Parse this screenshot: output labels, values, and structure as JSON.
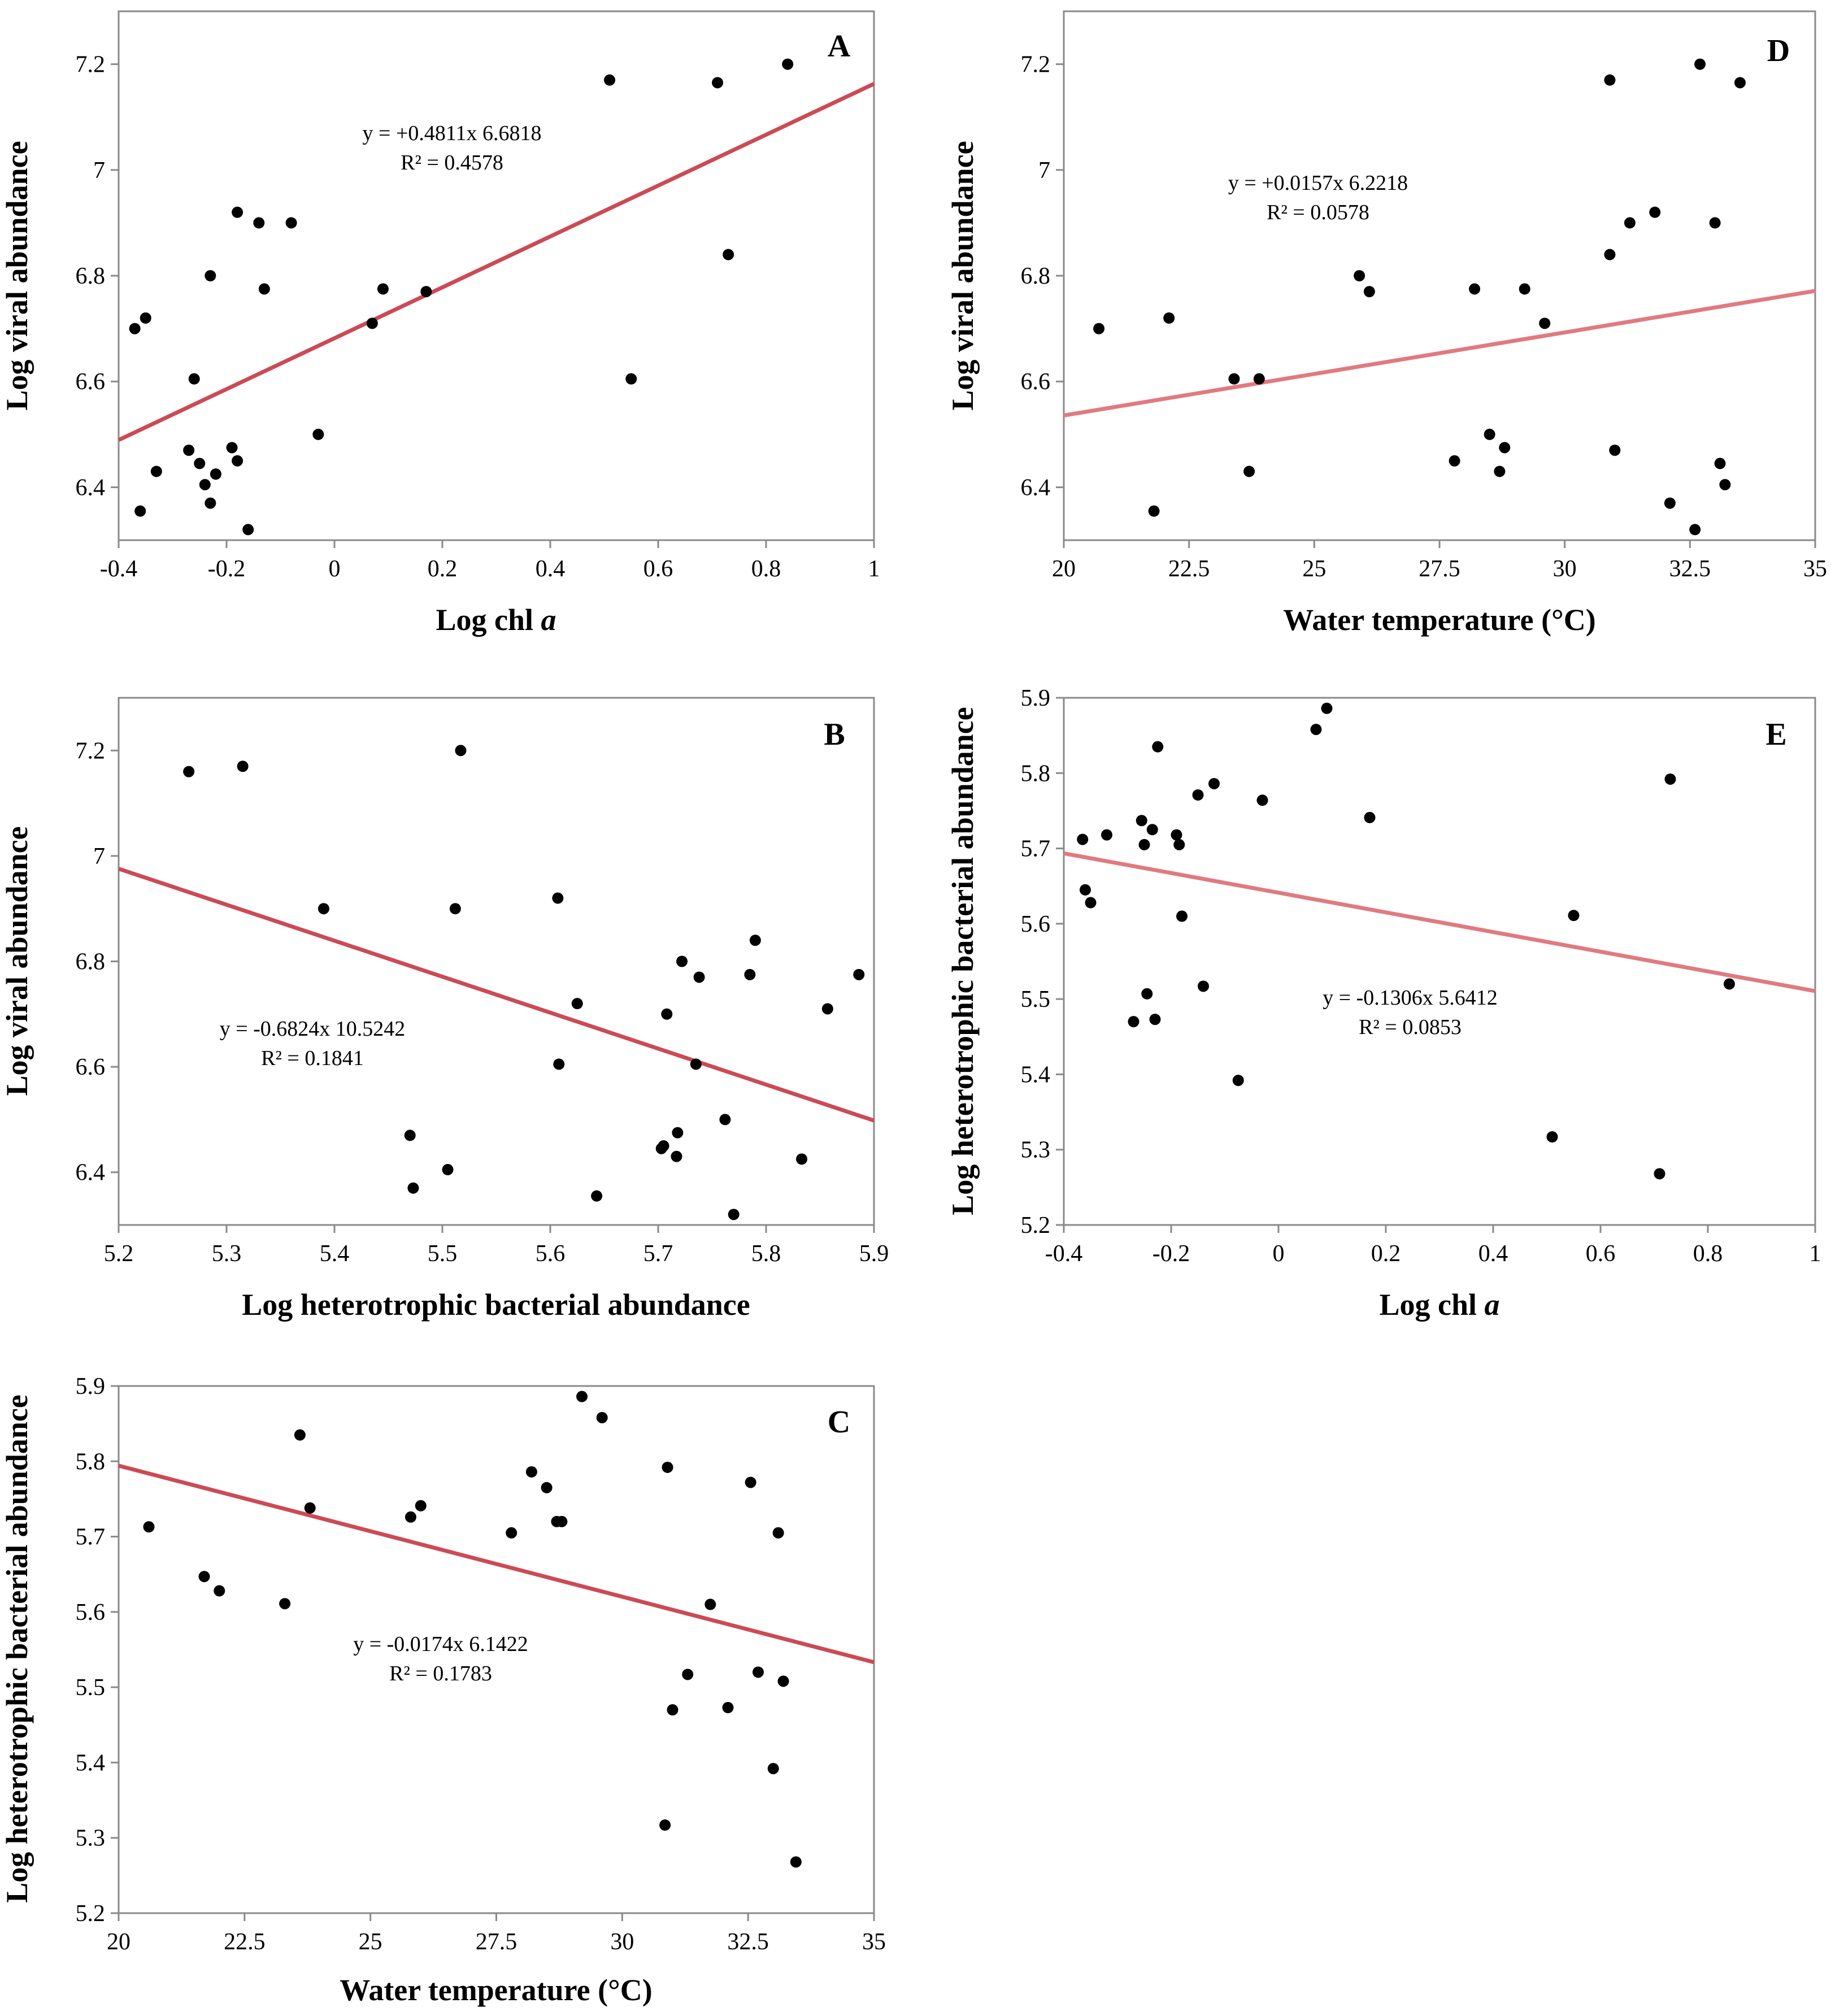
{
  "panels": [
    {
      "id": "A",
      "letter": "A",
      "xlabel": "Log chl ",
      "xlabel_italic": "a",
      "ylabel": "Log viral abundance",
      "xticks": [
        "-0.4",
        "-0.2",
        "0",
        "0.2",
        "0.4",
        "0.6",
        "0.8",
        "1"
      ],
      "yticks": [
        "6.4",
        "6.6",
        "6.8",
        "7",
        "7.2"
      ],
      "equation": "y = +0.4811x 6.6818",
      "r2": "R² = 0.4578",
      "line_color": "#cc4a55"
    },
    {
      "id": "D",
      "letter": "D",
      "xlabel": "Water temperature (°C)",
      "xlabel_italic": "",
      "ylabel": "Log viral abundance",
      "xticks": [
        "20",
        "22.5",
        "25",
        "27.5",
        "30",
        "32.5",
        "35"
      ],
      "yticks": [
        "6.4",
        "6.6",
        "6.8",
        "7",
        "7.2"
      ],
      "equation": "y = +0.0157x 6.2218",
      "r2": "R² = 0.0578",
      "line_color": "#e07a80"
    },
    {
      "id": "B",
      "letter": "B",
      "xlabel": "Log heterotrophic bacterial abundance",
      "xlabel_italic": "",
      "ylabel": "Log viral abundance",
      "xticks": [
        "5.2",
        "5.3",
        "5.4",
        "5.5",
        "5.6",
        "5.7",
        "5.8",
        "5.9"
      ],
      "yticks": [
        "6.4",
        "6.6",
        "6.8",
        "7",
        "7.2"
      ],
      "equation": "y = -0.6824x 10.5242",
      "r2": "R² = 0.1841",
      "line_color": "#cc4a55"
    },
    {
      "id": "E",
      "letter": "E",
      "xlabel": "Log chl ",
      "xlabel_italic": "a",
      "ylabel": "Log heterotrophic bacterial abundance",
      "xticks": [
        "-0.4",
        "-0.2",
        "0",
        "0.2",
        "0.4",
        "0.6",
        "0.8",
        "1"
      ],
      "yticks": [
        "5.2",
        "5.3",
        "5.4",
        "5.5",
        "5.6",
        "5.7",
        "5.8",
        "5.9"
      ],
      "equation": "y = -0.1306x 5.6412",
      "r2": "R² = 0.0853",
      "line_color": "#e07a80"
    },
    {
      "id": "C",
      "letter": "C",
      "xlabel": "Water temperature (°C)",
      "xlabel_italic": "",
      "ylabel": "Log heterotrophic bacterial abundance",
      "xticks": [
        "20",
        "22.5",
        "25",
        "27.5",
        "30",
        "32.5",
        "35"
      ],
      "yticks": [
        "5.2",
        "5.3",
        "5.4",
        "5.5",
        "5.6",
        "5.7",
        "5.8",
        "5.9"
      ],
      "equation": "y = -0.0174x 6.1422",
      "r2": "R² = 0.1783",
      "line_color": "#cc4a55"
    }
  ],
  "chart_data": [
    {
      "panel": "A",
      "type": "scatter",
      "title": "",
      "xlabel": "Log chl a",
      "ylabel": "Log viral abundance",
      "xlim": [
        -0.4,
        1.0
      ],
      "ylim": [
        6.3,
        7.3
      ],
      "x": [
        -0.37,
        -0.35,
        -0.36,
        -0.33,
        -0.27,
        -0.26,
        -0.25,
        -0.24,
        -0.23,
        -0.23,
        -0.22,
        -0.19,
        -0.18,
        -0.18,
        -0.16,
        -0.14,
        -0.13,
        -0.08,
        -0.03,
        0.07,
        0.09,
        0.17,
        0.51,
        0.55,
        0.71,
        0.73,
        0.84
      ],
      "y": [
        6.7,
        6.72,
        6.355,
        6.43,
        6.47,
        6.605,
        6.445,
        6.405,
        6.8,
        6.37,
        6.425,
        6.475,
        6.92,
        6.45,
        6.32,
        6.9,
        6.775,
        6.9,
        6.5,
        6.71,
        6.775,
        6.77,
        7.17,
        6.605,
        7.165,
        6.84,
        7.2
      ],
      "trendline": {
        "slope": 0.4811,
        "intercept": 6.6818
      },
      "equation": "y = +0.4811x 6.6818",
      "r2": 0.4578
    },
    {
      "panel": "D",
      "type": "scatter",
      "title": "",
      "xlabel": "Water temperature (°C)",
      "ylabel": "Log viral abundance",
      "xlim": [
        20,
        35
      ],
      "ylim": [
        6.3,
        7.3
      ],
      "x": [
        20.7,
        21.8,
        22.1,
        23.4,
        23.7,
        23.9,
        25.9,
        26.1,
        27.8,
        28.2,
        28.5,
        28.7,
        28.8,
        29.2,
        29.6,
        30.9,
        30.9,
        31.0,
        31.3,
        31.8,
        32.1,
        32.6,
        32.7,
        33.0,
        33.1,
        33.2,
        33.5
      ],
      "y": [
        6.7,
        6.355,
        6.72,
        6.605,
        6.43,
        6.605,
        6.8,
        6.77,
        6.45,
        6.775,
        6.5,
        6.43,
        6.475,
        6.775,
        6.71,
        6.84,
        7.17,
        6.47,
        6.9,
        6.92,
        6.37,
        6.32,
        7.2,
        6.9,
        6.445,
        6.405,
        7.165
      ],
      "trendline": {
        "slope": 0.0157,
        "intercept": 6.2218
      },
      "equation": "y = +0.0157x 6.2218",
      "r2": 0.0578
    },
    {
      "panel": "B",
      "type": "scatter",
      "title": "",
      "xlabel": "Log heterotrophic bacterial abundance",
      "ylabel": "Log viral abundance",
      "xlim": [
        5.2,
        5.9
      ],
      "ylim": [
        6.3,
        7.3
      ],
      "x": [
        5.265,
        5.315,
        5.39,
        5.47,
        5.473,
        5.505,
        5.512,
        5.517,
        5.607,
        5.608,
        5.625,
        5.643,
        5.703,
        5.705,
        5.708,
        5.717,
        5.718,
        5.722,
        5.735,
        5.738,
        5.762,
        5.77,
        5.785,
        5.79,
        5.833,
        5.857,
        5.886
      ],
      "y": [
        7.16,
        7.17,
        6.9,
        6.47,
        6.37,
        6.405,
        6.9,
        7.2,
        6.92,
        6.605,
        6.72,
        6.355,
        6.445,
        6.45,
        6.7,
        6.43,
        6.475,
        6.8,
        6.605,
        6.77,
        6.5,
        6.32,
        6.775,
        6.84,
        6.425,
        6.71,
        6.775
      ],
      "trendline": {
        "slope": -0.6824,
        "intercept": 10.5242
      },
      "equation": "y = -0.6824x 10.5242",
      "r2": 0.1841
    },
    {
      "panel": "E",
      "type": "scatter",
      "title": "",
      "xlabel": "Log chl a",
      "ylabel": "Log heterotrophic bacterial abundance",
      "xlim": [
        -0.4,
        1.0
      ],
      "ylim": [
        5.2,
        5.9
      ],
      "x": [
        -0.365,
        -0.36,
        -0.35,
        -0.32,
        -0.27,
        -0.255,
        -0.25,
        -0.245,
        -0.235,
        -0.23,
        -0.225,
        -0.19,
        -0.185,
        -0.18,
        -0.15,
        -0.14,
        -0.12,
        -0.075,
        -0.03,
        0.07,
        0.09,
        0.17,
        0.51,
        0.55,
        0.71,
        0.73,
        0.84
      ],
      "y": [
        5.712,
        5.645,
        5.628,
        5.718,
        5.47,
        5.737,
        5.705,
        5.507,
        5.725,
        5.473,
        5.835,
        5.718,
        5.705,
        5.61,
        5.771,
        5.517,
        5.786,
        5.392,
        5.764,
        5.858,
        5.886,
        5.741,
        5.317,
        5.611,
        5.268,
        5.792,
        5.52
      ],
      "trendline": {
        "slope": -0.1306,
        "intercept": 5.6412
      },
      "equation": "y = -0.1306x 5.6412",
      "r2": 0.0853
    },
    {
      "panel": "C",
      "type": "scatter",
      "title": "",
      "xlabel": "Water temperature (°C)",
      "ylabel": "Log heterotrophic bacterial abundance",
      "xlim": [
        20,
        35
      ],
      "ylim": [
        5.2,
        5.9
      ],
      "x": [
        20.6,
        21.7,
        22.0,
        23.3,
        23.6,
        23.8,
        25.8,
        26.0,
        27.8,
        28.2,
        28.5,
        28.7,
        28.8,
        29.2,
        29.6,
        30.85,
        30.9,
        31.0,
        31.3,
        31.75,
        32.1,
        32.55,
        32.7,
        33.0,
        33.1,
        33.2,
        33.45
      ],
      "y": [
        5.713,
        5.647,
        5.628,
        5.611,
        5.835,
        5.738,
        5.726,
        5.741,
        5.705,
        5.786,
        5.765,
        5.72,
        5.72,
        5.886,
        5.858,
        5.317,
        5.792,
        5.47,
        5.517,
        5.61,
        5.473,
        5.772,
        5.52,
        5.392,
        5.705,
        5.508,
        5.268
      ],
      "trendline": {
        "slope": -0.0174,
        "intercept": 6.1422
      },
      "equation": "y = -0.0174x 6.1422",
      "r2": 0.1783
    }
  ]
}
